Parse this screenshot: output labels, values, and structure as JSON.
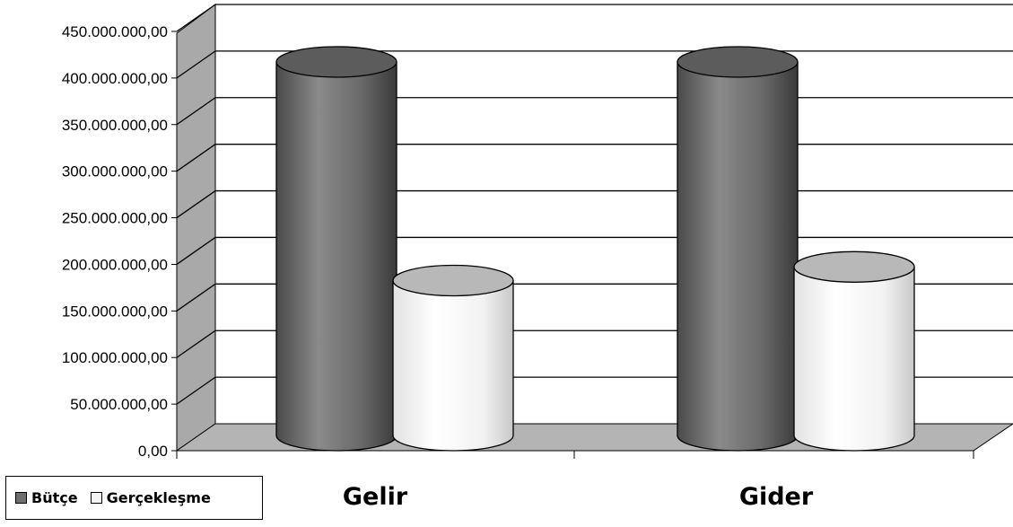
{
  "chart_data": {
    "type": "bar",
    "style": "3d-cylinder",
    "categories": [
      "Gelir",
      "Gider"
    ],
    "series": [
      {
        "name": "Bütçe",
        "values": [
          410000000,
          410000000
        ],
        "color": "#6e6e6e"
      },
      {
        "name": "Gerçekleşme",
        "values": [
          170000000,
          185000000
        ],
        "color": "#f4f4f4"
      }
    ],
    "ylim": [
      0,
      450000000
    ],
    "yticks": [
      "0,00",
      "50.000.000,00",
      "100.000.000,00",
      "150.000.000,00",
      "200.000.000,00",
      "250.000.000,00",
      "300.000.000,00",
      "350.000.000,00",
      "400.000.000,00",
      "450.000.000,00"
    ],
    "grid": true,
    "legend_position": "bottom-left"
  }
}
